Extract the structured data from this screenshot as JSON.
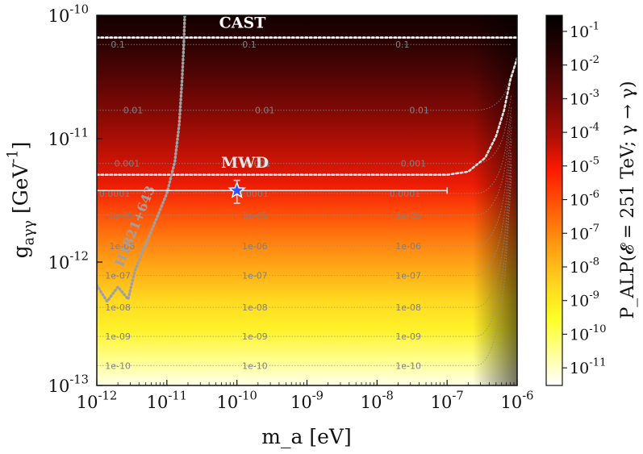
{
  "chart_data": {
    "type": "heatmap",
    "xlabel": "m_a [eV]",
    "ylabel": "g_{aγγ} [GeV^{-1}]",
    "colorbar_label": "P_ALP(𝓔 = 251 TeV; γ → γ)",
    "x_scale": "log",
    "y_scale": "log",
    "xlim": [
      1e-12,
      1e-06
    ],
    "ylim": [
      1e-13,
      1e-10
    ],
    "colorbar_range": [
      3e-12,
      0.3
    ],
    "x_ticks": [
      {
        "value": 1e-12,
        "label": "10^{-12}"
      },
      {
        "value": 1e-11,
        "label": "10^{-11}"
      },
      {
        "value": 1e-10,
        "label": "10^{-10}"
      },
      {
        "value": 1e-09,
        "label": "10^{-9}"
      },
      {
        "value": 1e-08,
        "label": "10^{-8}"
      },
      {
        "value": 1e-07,
        "label": "10^{-7}"
      },
      {
        "value": 1e-06,
        "label": "10^{-6}"
      }
    ],
    "y_ticks": [
      {
        "value": 1e-13,
        "label": "10^{-13}"
      },
      {
        "value": 1e-12,
        "label": "10^{-12}"
      },
      {
        "value": 1e-11,
        "label": "10^{-11}"
      },
      {
        "value": 1e-10,
        "label": "10^{-10}"
      }
    ],
    "colorbar_ticks": [
      {
        "value": 0.1,
        "label": "10^{-1}"
      },
      {
        "value": 0.01,
        "label": "10^{-2}"
      },
      {
        "value": 0.001,
        "label": "10^{-3}"
      },
      {
        "value": 0.0001,
        "label": "10^{-4}"
      },
      {
        "value": 1e-05,
        "label": "10^{-5}"
      },
      {
        "value": 1e-06,
        "label": "10^{-6}"
      },
      {
        "value": 1e-07,
        "label": "10^{-7}"
      },
      {
        "value": 1e-08,
        "label": "10^{-8}"
      },
      {
        "value": 1e-09,
        "label": "10^{-9}"
      },
      {
        "value": 1e-10,
        "label": "10^{-10}"
      },
      {
        "value": 1e-11,
        "label": "10^{-11}"
      }
    ],
    "contour_levels": [
      {
        "label": "0.1",
        "g": 5.8e-11,
        "label_x": [
          2e-12,
          1.5e-10,
          2.3e-08
        ]
      },
      {
        "label": "0.01",
        "g": 1.7e-11,
        "label_x": [
          3.3e-12,
          2.5e-10,
          4e-08
        ]
      },
      {
        "label": "0.001",
        "g": 6.3e-12,
        "label_x": [
          2.7e-12,
          2e-10,
          3.3e-08
        ]
      },
      {
        "label": "0.0001",
        "g": 3.6e-12,
        "label_x": [
          1.8e-12,
          1.7e-10,
          2.5e-08
        ]
      },
      {
        "label": "1e-05",
        "g": 2.4e-12,
        "label_x": [
          2.2e-12,
          1.8e-10,
          2.8e-08
        ]
      },
      {
        "label": "1e-06",
        "g": 1.35e-12,
        "label_x": [
          2.3e-12,
          1.8e-10,
          2.8e-08
        ]
      },
      {
        "label": "1e-07",
        "g": 7.8e-13,
        "label_x": [
          2e-12,
          1.8e-10,
          2.8e-08
        ]
      },
      {
        "label": "1e-08",
        "g": 4.3e-13,
        "label_x": [
          2e-12,
          1.8e-10,
          2.8e-08
        ]
      },
      {
        "label": "1e-09",
        "g": 2.5e-13,
        "label_x": [
          2e-12,
          1.8e-10,
          2.8e-08
        ]
      },
      {
        "label": "1e-10",
        "g": 1.45e-13,
        "label_x": [
          2e-12,
          1.8e-10,
          2.8e-08
        ]
      }
    ],
    "exclusion_lines": [
      {
        "name": "CAST",
        "points": [
          [
            1e-12,
            6.6e-11
          ],
          [
            1e-06,
            6.6e-11
          ]
        ],
        "label_at": [
          1.2e-10,
          7.9e-11
        ],
        "color": "#ffffff"
      },
      {
        "name": "MWD",
        "points": [
          [
            1e-12,
            5.1e-12
          ],
          [
            1e-07,
            5.1e-12
          ],
          [
            2e-07,
            5.4e-12
          ],
          [
            3.5e-07,
            7e-12
          ],
          [
            5e-07,
            1.05e-11
          ],
          [
            6.5e-07,
            1.7e-11
          ],
          [
            8e-07,
            3e-11
          ],
          [
            1e-06,
            4.5e-11
          ]
        ],
        "label_at": [
          1.3e-10,
          5.8e-12
        ],
        "color": "#e6e6e6"
      },
      {
        "name": "H1821+643",
        "points": [
          [
            1e-12,
            6.5e-13
          ],
          [
            1.4e-12,
            4.8e-13
          ],
          [
            2e-12,
            6.3e-13
          ],
          [
            2.8e-12,
            5e-13
          ],
          [
            3.5e-12,
            8.5e-13
          ],
          [
            5e-12,
            1.4e-12
          ],
          [
            7e-12,
            2.2e-12
          ],
          [
            1e-11,
            3.6e-12
          ],
          [
            1.3e-11,
            6.5e-12
          ],
          [
            1.5e-11,
            1.3e-11
          ],
          [
            1.65e-11,
            3e-11
          ],
          [
            1.75e-11,
            6e-11
          ],
          [
            1.8e-11,
            1e-10
          ]
        ],
        "label_at": [
          4e-12,
          1.9e-12
        ],
        "color": "#a0a0a0"
      }
    ],
    "benchmark_point": {
      "x": 1e-10,
      "y": 3.8e-12,
      "x_err": [
        1e-12,
        1e-07
      ],
      "y_err": [
        3e-12,
        4.6e-12
      ],
      "color": "#3355ff"
    }
  }
}
